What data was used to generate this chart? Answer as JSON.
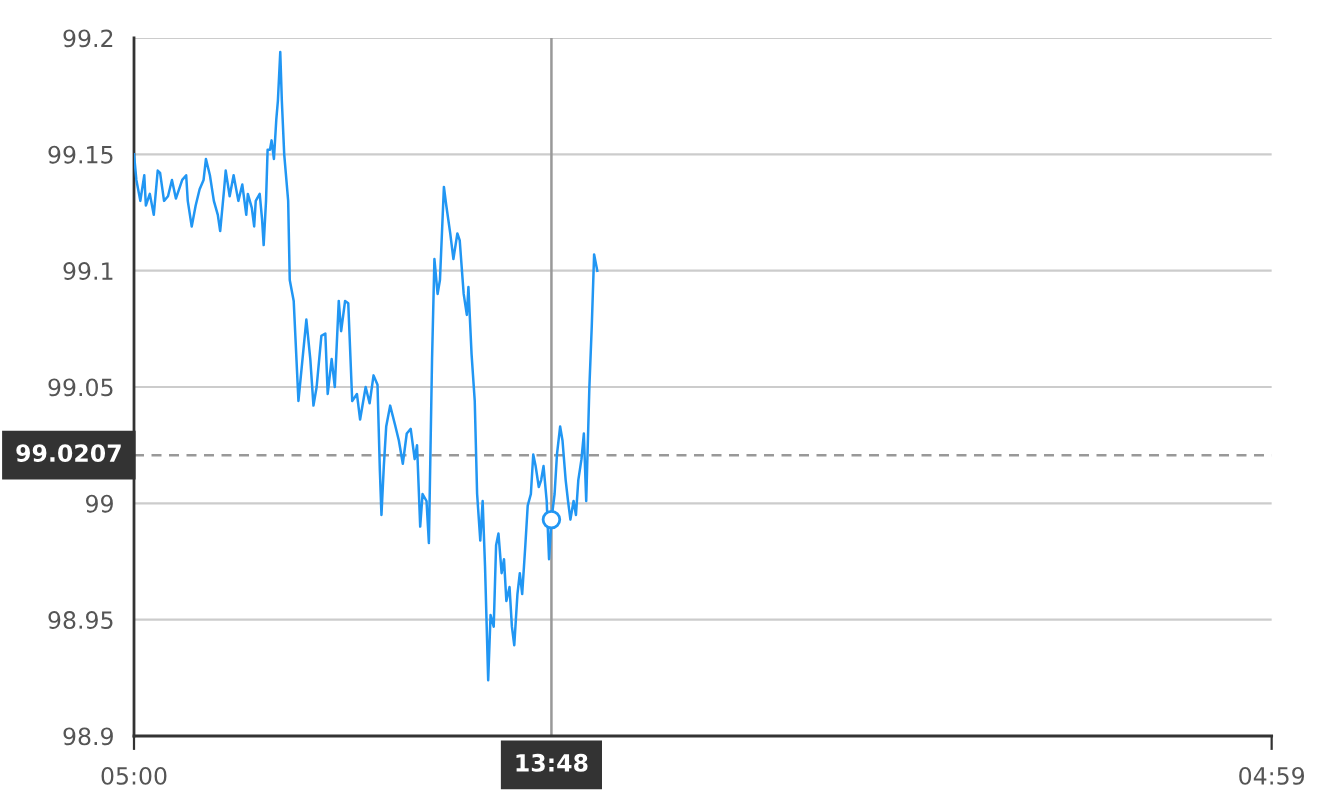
{
  "chart_data": {
    "type": "line",
    "xlim": [
      "2000-01-01T05:00",
      "2000-01-02T04:59"
    ],
    "xticks": [
      {
        "value": "2000-01-01T05:00",
        "label": "05:00"
      },
      {
        "value": "2000-01-02T04:59",
        "label": "04:59"
      }
    ],
    "ylim": [
      98.9,
      99.2
    ],
    "yticks": [
      98.9,
      98.95,
      99,
      99.05,
      99.1,
      99.15,
      99.2
    ],
    "grid": "y",
    "series": [
      {
        "color": "#2196f3",
        "line_style": "solid",
        "x": [
          "2000-01-01T05:00",
          "2000-01-01T05:03",
          "2000-01-01T05:08",
          "2000-01-01T05:13",
          "2000-01-01T05:15",
          "2000-01-01T05:20",
          "2000-01-01T05:25",
          "2000-01-01T05:30",
          "2000-01-01T05:33",
          "2000-01-01T05:38",
          "2000-01-01T05:43",
          "2000-01-01T05:48",
          "2000-01-01T05:53",
          "2000-01-01T06:01",
          "2000-01-01T06:06",
          "2000-01-01T06:08",
          "2000-01-01T06:13",
          "2000-01-01T06:18",
          "2000-01-01T06:23",
          "2000-01-01T06:28",
          "2000-01-01T06:31",
          "2000-01-01T06:36",
          "2000-01-01T06:41",
          "2000-01-01T06:46",
          "2000-01-01T06:49",
          "2000-01-01T06:54",
          "2000-01-01T06:56",
          "2000-01-01T07:01",
          "2000-01-01T07:06",
          "2000-01-01T07:12",
          "2000-01-01T07:17",
          "2000-01-01T07:22",
          "2000-01-01T07:24",
          "2000-01-01T07:29",
          "2000-01-01T07:32",
          "2000-01-01T07:34",
          "2000-01-01T07:39",
          "2000-01-01T07:42",
          "2000-01-01T07:44",
          "2000-01-01T07:47",
          "2000-01-01T07:49",
          "2000-01-01T07:52",
          "2000-01-01T07:54",
          "2000-01-01T07:57",
          "2000-01-01T08:00",
          "2000-01-01T08:02",
          "2000-01-01T08:05",
          "2000-01-01T08:07",
          "2000-01-01T08:10",
          "2000-01-01T08:15",
          "2000-01-01T08:17",
          "2000-01-01T08:22",
          "2000-01-01T08:28",
          "2000-01-01T08:38",
          "2000-01-01T08:43",
          "2000-01-01T08:47",
          "2000-01-01T08:51",
          "2000-01-01T08:57",
          "2000-01-01T09:02",
          "2000-01-01T09:05",
          "2000-01-01T09:10",
          "2000-01-01T09:14",
          "2000-01-01T09:19",
          "2000-01-01T09:22",
          "2000-01-01T09:27",
          "2000-01-01T09:31",
          "2000-01-01T09:36",
          "2000-01-01T09:42",
          "2000-01-01T09:46",
          "2000-01-01T09:53",
          "2000-01-01T09:58",
          "2000-01-01T10:03",
          "2000-01-01T10:08",
          "2000-01-01T10:11",
          "2000-01-01T10:13",
          "2000-01-01T10:16",
          "2000-01-01T10:19",
          "2000-01-01T10:24",
          "2000-01-01T10:30",
          "2000-01-01T10:35",
          "2000-01-01T10:40",
          "2000-01-01T10:45",
          "2000-01-01T10:50",
          "2000-01-01T10:55",
          "2000-01-01T10:58",
          "2000-01-01T11:02",
          "2000-01-01T11:05",
          "2000-01-01T11:10",
          "2000-01-01T11:13",
          "2000-01-01T11:17",
          "2000-01-01T11:20",
          "2000-01-01T11:24",
          "2000-01-01T11:27",
          "2000-01-01T11:32",
          "2000-01-01T11:35",
          "2000-01-01T11:40",
          "2000-01-01T11:44",
          "2000-01-01T11:49",
          "2000-01-01T11:52",
          "2000-01-01T11:57",
          "2000-01-01T12:01",
          "2000-01-01T12:03",
          "2000-01-01T12:07",
          "2000-01-01T12:11",
          "2000-01-01T12:14",
          "2000-01-01T12:18",
          "2000-01-01T12:21",
          "2000-01-01T12:24",
          "2000-01-01T12:28",
          "2000-01-01T12:31",
          "2000-01-01T12:35",
          "2000-01-01T12:38",
          "2000-01-01T12:41",
          "2000-01-01T12:45",
          "2000-01-01T12:48",
          "2000-01-01T12:51",
          "2000-01-01T12:55",
          "2000-01-01T12:58",
          "2000-01-01T13:01",
          "2000-01-01T13:05",
          "2000-01-01T13:08",
          "2000-01-01T13:11",
          "2000-01-01T13:15",
          "2000-01-01T13:18",
          "2000-01-01T13:22",
          "2000-01-01T13:25",
          "2000-01-01T13:28",
          "2000-01-01T13:32",
          "2000-01-01T13:35",
          "2000-01-01T13:38",
          "2000-01-01T13:42",
          "2000-01-01T13:45",
          "2000-01-01T13:48",
          "2000-01-01T13:52",
          "2000-01-01T13:55",
          "2000-01-01T13:59",
          "2000-01-01T14:02",
          "2000-01-01T14:06",
          "2000-01-01T14:09",
          "2000-01-01T14:12",
          "2000-01-01T14:16",
          "2000-01-01T14:19",
          "2000-01-01T14:22",
          "2000-01-01T14:26",
          "2000-01-01T14:29",
          "2000-01-01T14:32",
          "2000-01-01T14:36",
          "2000-01-01T14:39",
          "2000-01-01T14:42",
          "2000-01-01T14:46"
        ],
        "values": [
          99.15,
          99.139,
          99.13,
          99.141,
          99.128,
          99.133,
          99.124,
          99.143,
          99.142,
          99.13,
          99.132,
          99.139,
          99.131,
          99.139,
          99.141,
          99.13,
          99.119,
          99.128,
          99.135,
          99.139,
          99.148,
          99.141,
          99.13,
          99.124,
          99.117,
          99.135,
          99.143,
          99.132,
          99.141,
          99.13,
          99.137,
          99.124,
          99.133,
          99.127,
          99.119,
          99.13,
          99.133,
          99.122,
          99.111,
          99.13,
          99.152,
          99.152,
          99.156,
          99.148,
          99.165,
          99.173,
          99.194,
          99.173,
          99.15,
          99.13,
          99.096,
          99.087,
          99.044,
          99.079,
          99.062,
          99.042,
          99.05,
          99.072,
          99.073,
          99.047,
          99.062,
          99.05,
          99.087,
          99.074,
          99.087,
          99.086,
          99.044,
          99.047,
          99.036,
          99.05,
          99.043,
          99.055,
          99.051,
          99.014,
          98.995,
          99.016,
          99.033,
          99.042,
          99.034,
          99.027,
          99.017,
          99.03,
          99.032,
          99.019,
          99.025,
          98.99,
          99.004,
          99.001,
          98.983,
          99.062,
          99.105,
          99.09,
          99.096,
          99.136,
          99.128,
          99.116,
          99.105,
          99.116,
          99.113,
          99.09,
          99.081,
          99.093,
          99.064,
          99.044,
          99.004,
          98.984,
          99.001,
          98.973,
          98.924,
          98.952,
          98.947,
          98.982,
          98.987,
          98.97,
          98.976,
          98.958,
          98.964,
          98.947,
          98.939,
          98.961,
          98.97,
          98.961,
          98.982,
          98.999,
          99.004,
          99.021,
          99.016,
          99.007,
          99.01,
          99.016,
          99.001,
          98.976,
          98.993,
          99.004,
          99.021,
          99.033,
          99.027,
          99.01,
          99.001,
          98.993,
          99.001,
          98.995,
          99.01,
          99.019,
          99.03,
          99.001,
          99.05,
          99.076,
          99.107,
          99.1
        ]
      },
      {
        "type": "scatter",
        "color": "#2196f3",
        "marker": "circle",
        "x": [
          "2000-01-01T13:48"
        ],
        "values": [
          98.993
        ]
      }
    ],
    "ref_lines": [
      {
        "axis": "x",
        "value": "2000-01-01T13:48",
        "label": "13:48",
        "color": "#999999",
        "line_style": "solid"
      },
      {
        "axis": "y",
        "value": 99.0207,
        "label": "99.0207",
        "color": "#999999",
        "line_style": "dashed"
      }
    ]
  }
}
